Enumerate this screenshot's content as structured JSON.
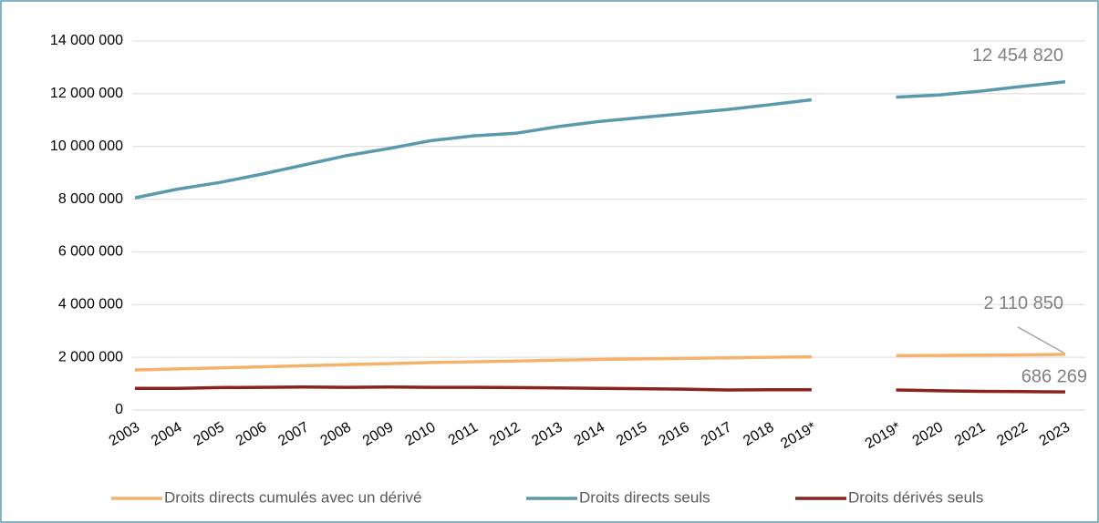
{
  "chart_data": {
    "type": "line",
    "categories": [
      "2003",
      "2004",
      "2005",
      "2006",
      "2007",
      "2008",
      "2009",
      "2010",
      "2011",
      "2012",
      "2013",
      "2014",
      "2015",
      "2016",
      "2017",
      "2018",
      "2019*",
      null,
      "2019*",
      "2020",
      "2021",
      "2022",
      "2023"
    ],
    "series": [
      {
        "name": "Droits directs cumulés avec un dérivé",
        "color": "#f6b26b",
        "values": [
          1520000,
          1560000,
          1600000,
          1640000,
          1680000,
          1720000,
          1760000,
          1800000,
          1830000,
          1860000,
          1890000,
          1920000,
          1940000,
          1960000,
          1980000,
          2000000,
          2020000,
          null,
          2060000,
          2070000,
          2080000,
          2090000,
          2110850
        ],
        "value_labels": [
          null,
          null,
          null,
          null,
          null,
          null,
          null,
          null,
          null,
          null,
          null,
          null,
          null,
          null,
          null,
          null,
          null,
          null,
          null,
          null,
          null,
          null,
          "2 110 850"
        ]
      },
      {
        "name": "Droits directs seuls",
        "color": "#5b9aad",
        "values": [
          8050000,
          8380000,
          8630000,
          8950000,
          9300000,
          9650000,
          9920000,
          10220000,
          10400000,
          10500000,
          10750000,
          10950000,
          11100000,
          11250000,
          11400000,
          11580000,
          11770000,
          null,
          11870000,
          11950000,
          12100000,
          12280000,
          12454820
        ],
        "value_labels": [
          null,
          null,
          null,
          null,
          null,
          null,
          null,
          null,
          null,
          null,
          null,
          null,
          null,
          null,
          null,
          null,
          null,
          null,
          null,
          null,
          null,
          null,
          "12 454 820"
        ]
      },
      {
        "name": "Droits dérivés seuls",
        "color": "#8b231d",
        "values": [
          820000,
          820000,
          850000,
          860000,
          870000,
          860000,
          870000,
          860000,
          860000,
          850000,
          840000,
          820000,
          810000,
          790000,
          760000,
          770000,
          770000,
          null,
          760000,
          730000,
          710000,
          700000,
          686269
        ],
        "value_labels": [
          null,
          null,
          null,
          null,
          null,
          null,
          null,
          null,
          null,
          null,
          null,
          null,
          null,
          null,
          null,
          null,
          null,
          null,
          null,
          null,
          null,
          null,
          "686 269"
        ]
      }
    ],
    "ylim": [
      0,
      14000000
    ],
    "yticks": [
      0,
      {
        "value": 2000000,
        "label": "2 000 000"
      },
      {
        "value": 4000000,
        "label": "4 000 000"
      },
      {
        "value": 6000000,
        "label": "6 000 000"
      },
      {
        "value": 8000000,
        "label": "8 000 000"
      },
      {
        "value": 10000000,
        "label": "10 000 000"
      },
      {
        "value": 12000000,
        "label": "12 000 000"
      },
      {
        "value": 14000000,
        "label": "14 000 000"
      }
    ],
    "grid": true,
    "legend": "bottom"
  }
}
